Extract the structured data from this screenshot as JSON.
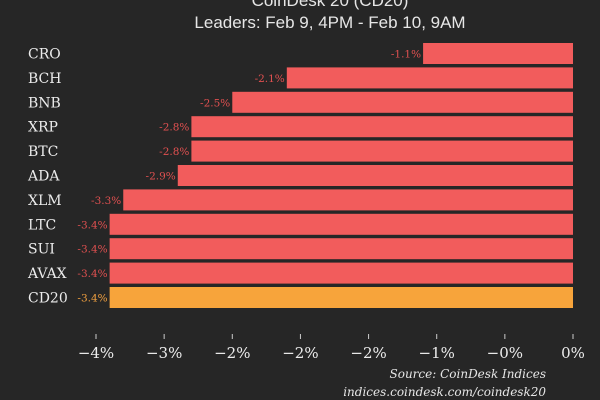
{
  "chart_data": {
    "type": "bar",
    "orientation": "horizontal",
    "title": "CoinDesk 20 (CD20)",
    "subtitle": "Leaders: Feb 9, 4PM - Feb 10, 9AM",
    "categories": [
      "CRO",
      "BCH",
      "BNB",
      "XRP",
      "BTC",
      "ADA",
      "XLM",
      "LTC",
      "SUI",
      "AVAX",
      "CD20"
    ],
    "values": [
      -1.1,
      -2.1,
      -2.5,
      -2.8,
      -2.8,
      -2.9,
      -3.3,
      -3.4,
      -3.4,
      -3.4,
      -3.4
    ],
    "data_labels": [
      "-1.1%",
      "-2.1%",
      "-2.5%",
      "-2.8%",
      "-2.8%",
      "-2.9%",
      "-3.3%",
      "-3.4%",
      "-3.4%",
      "-3.4%",
      "-3.4%"
    ],
    "xlim": [
      -3.5,
      0
    ],
    "x_ticks": [
      -3.5,
      -3,
      -2.5,
      -2,
      -1.5,
      -1,
      -0.5,
      0
    ],
    "x_tick_labels": [
      "−4%",
      "−3%",
      "−2%",
      "−2%",
      "−2%",
      "−1%",
      "−0%",
      "0%"
    ],
    "grid": false,
    "colors": {
      "bar": "#f25c5c",
      "highlight_bar": "#f7a43b",
      "label": "#e05050",
      "highlight_label": "#f0a040",
      "background": "#262626"
    },
    "highlight_category": "CD20",
    "source": "Source: CoinDesk Indices",
    "source_url": "indices.coindesk.com/coindesk20"
  }
}
